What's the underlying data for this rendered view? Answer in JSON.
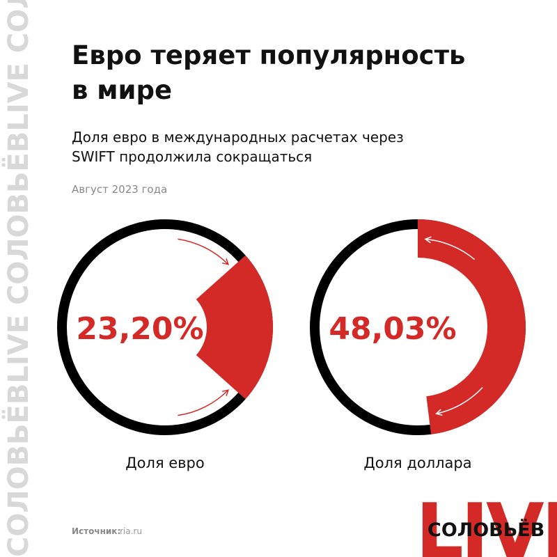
{
  "header": {
    "title_lines": [
      "Евро теряет популярность",
      "в мире"
    ],
    "subtitle_lines": [
      "Доля евро в международных расчетах через",
      "SWIFT продолжила сокращаться"
    ],
    "date": "Август 2023 года"
  },
  "chart_data": [
    {
      "type": "donut",
      "categories": [
        "Доля евро"
      ],
      "values": [
        23.2
      ],
      "value_labels": [
        "23,20%"
      ],
      "color": "#d42a27",
      "ring_color": "#000000"
    },
    {
      "type": "donut",
      "categories": [
        "Доля доллара"
      ],
      "values": [
        48.03
      ],
      "value_labels": [
        "48,03%"
      ],
      "color": "#d42a27",
      "ring_color": "#000000"
    }
  ],
  "footer": {
    "source_label": "Источник:",
    "source": "ria.ru",
    "watermark": "СОЛОВЬЁВLIVE СОЛОВЬЁВLIVE СОЛОВЬЁВ",
    "logo_live": "LIVE",
    "logo_name": "СОЛОВЬЁВ"
  }
}
